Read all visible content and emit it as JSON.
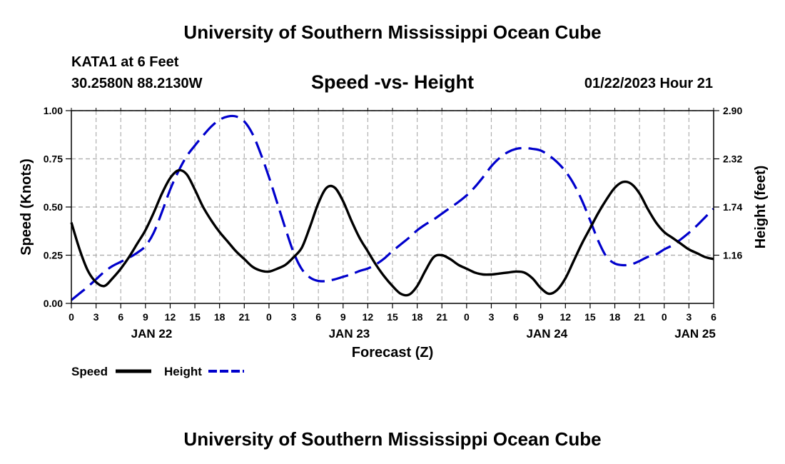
{
  "header": {
    "title": "University of Southern Mississippi Ocean Cube",
    "station": "KATA1 at 6 Feet",
    "coordinates": "30.2580N  88.2130W",
    "subtitle": "Speed -vs- Height",
    "datetime": "01/22/2023 Hour 21"
  },
  "footer": {
    "title": "University of Southern Mississippi Ocean Cube"
  },
  "chart_data": {
    "type": "line",
    "title": "Speed -vs- Height",
    "xlabel": "Forecast (Z)",
    "ylabel": "Speed (Knots)",
    "y2label": "Height (feet)",
    "xlim": [
      0,
      78
    ],
    "ylim": [
      0,
      1.0
    ],
    "y2lim": [
      0.58,
      2.9
    ],
    "x_tick_values": [
      0,
      3,
      6,
      9,
      12,
      15,
      18,
      21,
      24,
      27,
      30,
      33,
      36,
      39,
      42,
      45,
      48,
      51,
      54,
      57,
      60,
      63,
      66,
      69,
      72,
      75,
      78
    ],
    "x_tick_labels": [
      "0",
      "3",
      "6",
      "9",
      "12",
      "15",
      "18",
      "21",
      "0",
      "3",
      "6",
      "9",
      "12",
      "15",
      "18",
      "21",
      "0",
      "3",
      "6",
      "9",
      "12",
      "15",
      "18",
      "21",
      "0",
      "3",
      "6"
    ],
    "day_labels": [
      {
        "x": 9.75,
        "label": "JAN 22"
      },
      {
        "x": 33.75,
        "label": "JAN 23"
      },
      {
        "x": 57.75,
        "label": "JAN 24"
      },
      {
        "x": 75.75,
        "label": "JAN 25"
      }
    ],
    "y_ticks": [
      {
        "v": 0.0,
        "label": "0.00"
      },
      {
        "v": 0.25,
        "label": "0.25"
      },
      {
        "v": 0.5,
        "label": "0.50"
      },
      {
        "v": 0.75,
        "label": "0.75"
      },
      {
        "v": 1.0,
        "label": "1.00"
      }
    ],
    "y2_ticks": [
      {
        "v": 1.16,
        "label": "1.16"
      },
      {
        "v": 1.74,
        "label": "1.74"
      },
      {
        "v": 2.32,
        "label": "2.32"
      },
      {
        "v": 2.9,
        "label": "2.90"
      }
    ],
    "grid": true,
    "legend": "bottom-left",
    "series": [
      {
        "name": "Speed",
        "axis": "left",
        "color": "#000000",
        "dash": "solid",
        "x": [
          0,
          1,
          2,
          3,
          4,
          5,
          6,
          7,
          8,
          9,
          10,
          11,
          12,
          13,
          14,
          15,
          16,
          17,
          18,
          19,
          20,
          21,
          22,
          23,
          24,
          25,
          26,
          27,
          28,
          29,
          30,
          31,
          32,
          33,
          34,
          35,
          36,
          37,
          38,
          39,
          40,
          41,
          42,
          43,
          44,
          45,
          46,
          47,
          48,
          49,
          50,
          51,
          52,
          53,
          54,
          55,
          56,
          57,
          58,
          59,
          60,
          61,
          62,
          63,
          64,
          65,
          66,
          67,
          68,
          69,
          70,
          71,
          72,
          73,
          74,
          75,
          76,
          77,
          78
        ],
        "values": [
          0.42,
          0.28,
          0.17,
          0.11,
          0.09,
          0.13,
          0.18,
          0.24,
          0.31,
          0.38,
          0.47,
          0.57,
          0.65,
          0.69,
          0.67,
          0.59,
          0.5,
          0.43,
          0.37,
          0.32,
          0.27,
          0.23,
          0.19,
          0.17,
          0.165,
          0.18,
          0.2,
          0.24,
          0.29,
          0.4,
          0.52,
          0.6,
          0.6,
          0.53,
          0.43,
          0.34,
          0.27,
          0.2,
          0.14,
          0.09,
          0.05,
          0.045,
          0.09,
          0.17,
          0.24,
          0.25,
          0.23,
          0.2,
          0.18,
          0.16,
          0.15,
          0.15,
          0.155,
          0.16,
          0.165,
          0.16,
          0.13,
          0.08,
          0.05,
          0.07,
          0.13,
          0.22,
          0.31,
          0.39,
          0.47,
          0.54,
          0.6,
          0.63,
          0.62,
          0.57,
          0.49,
          0.42,
          0.37,
          0.34,
          0.31,
          0.28,
          0.26,
          0.24,
          0.23
        ]
      },
      {
        "name": "Height",
        "axis": "right",
        "color": "#0000cc",
        "dash": "dashed",
        "x": [
          0,
          1,
          2,
          3,
          4,
          5,
          6,
          7,
          8,
          9,
          10,
          11,
          12,
          13,
          14,
          15,
          16,
          17,
          18,
          19,
          20,
          21,
          22,
          23,
          24,
          25,
          26,
          27,
          28,
          29,
          30,
          31,
          32,
          33,
          34,
          35,
          36,
          37,
          38,
          39,
          40,
          41,
          42,
          43,
          44,
          45,
          46,
          47,
          48,
          49,
          50,
          51,
          52,
          53,
          54,
          55,
          56,
          57,
          58,
          59,
          60,
          61,
          62,
          63,
          64,
          65,
          66,
          67,
          68,
          69,
          70,
          71,
          72,
          73,
          74,
          75,
          76,
          77,
          78
        ],
        "values": [
          0.62,
          0.7,
          0.78,
          0.87,
          0.96,
          1.03,
          1.08,
          1.13,
          1.19,
          1.27,
          1.43,
          1.68,
          1.95,
          2.17,
          2.35,
          2.48,
          2.6,
          2.71,
          2.79,
          2.83,
          2.83,
          2.77,
          2.62,
          2.38,
          2.1,
          1.79,
          1.48,
          1.19,
          0.99,
          0.89,
          0.85,
          0.85,
          0.87,
          0.9,
          0.93,
          0.97,
          1.0,
          1.05,
          1.12,
          1.21,
          1.29,
          1.37,
          1.46,
          1.53,
          1.59,
          1.66,
          1.73,
          1.8,
          1.88,
          1.98,
          2.1,
          2.23,
          2.33,
          2.4,
          2.44,
          2.45,
          2.44,
          2.42,
          2.36,
          2.28,
          2.17,
          2.02,
          1.82,
          1.58,
          1.33,
          1.14,
          1.06,
          1.04,
          1.05,
          1.09,
          1.14,
          1.17,
          1.23,
          1.28,
          1.35,
          1.43,
          1.52,
          1.62,
          1.72
        ]
      }
    ]
  }
}
